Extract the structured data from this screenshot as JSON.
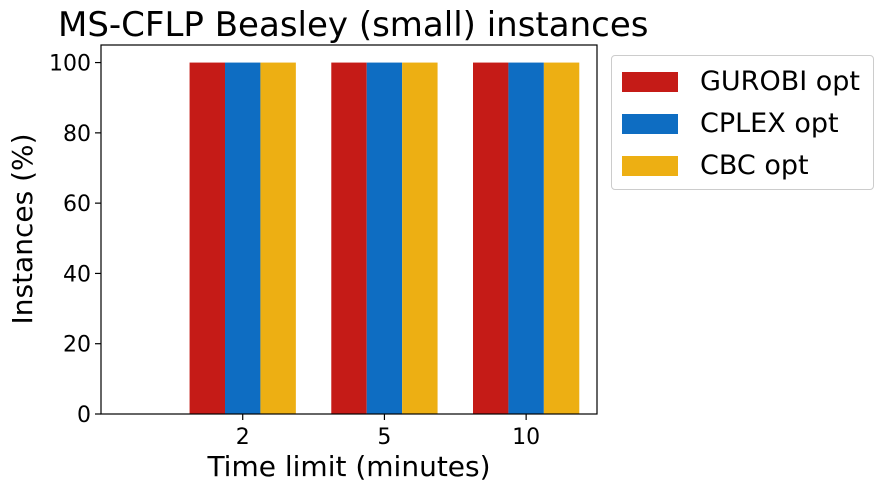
{
  "chart_data": {
    "type": "bar",
    "title": "MS-CFLP Beasley (small) instances",
    "xlabel": "Time limit (minutes)",
    "ylabel": "Instances (%)",
    "categories": [
      "2",
      "5",
      "10"
    ],
    "series": [
      {
        "name": "GUROBI opt",
        "values": [
          100,
          100,
          100
        ],
        "color": "#c51b17"
      },
      {
        "name": "CPLEX opt",
        "values": [
          100,
          100,
          100
        ],
        "color": "#0e6dc2"
      },
      {
        "name": "CBC opt",
        "values": [
          100,
          100,
          100
        ],
        "color": "#edaf13"
      }
    ],
    "ylim": [
      0,
      105
    ],
    "yticks": [
      0,
      20,
      40,
      60,
      80,
      100
    ],
    "grid": false,
    "legend_position": "outside-top-right"
  }
}
